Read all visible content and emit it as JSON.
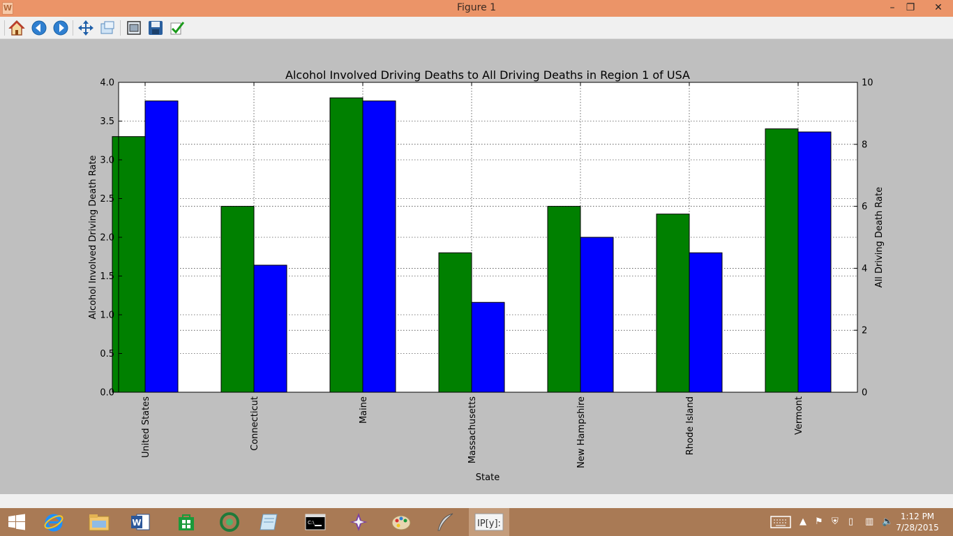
{
  "window": {
    "title": "Figure 1",
    "minimize": "–",
    "restore": "❐",
    "close": "✕"
  },
  "toolbar": {
    "buttons": [
      "home-icon",
      "back-icon",
      "forward-icon",
      "pan-icon",
      "zoom-icon",
      "configure-subplots-icon",
      "save-icon",
      "edit-icon"
    ]
  },
  "chart_data": {
    "type": "bar",
    "title": "Alcohol Involved Driving Deaths to All Driving Deaths in Region 1 of USA",
    "xlabel": "State",
    "ylabel": "Alcohol Involved Driving Death Rate",
    "y2label": "All Driving Death Rate",
    "categories": [
      "United States",
      "Connecticut",
      "Maine",
      "Massachusetts",
      "New Hampshire",
      "Rhode Island",
      "Vermont"
    ],
    "series": [
      {
        "axis": "left",
        "color": "#008000",
        "values": [
          3.3,
          2.4,
          3.8,
          1.8,
          2.4,
          2.3,
          3.4
        ]
      },
      {
        "axis": "right",
        "color": "#0000ff",
        "values": [
          9.4,
          4.1,
          9.4,
          2.9,
          5.0,
          4.5,
          8.4
        ]
      }
    ],
    "ylim": [
      0,
      4.0
    ],
    "y2lim": [
      0,
      10
    ],
    "yticks": [
      "0.0",
      "0.5",
      "1.0",
      "1.5",
      "2.0",
      "2.5",
      "3.0",
      "3.5",
      "4.0"
    ],
    "y2ticks": [
      "0",
      "2",
      "4",
      "6",
      "8",
      "10"
    ],
    "grid": true
  },
  "taskbar": {
    "items": [
      "start-icon",
      "internet-explorer-icon",
      "file-explorer-icon",
      "word-icon",
      "store-icon",
      "python-icon",
      "notepad-icon",
      "command-prompt-icon",
      "app-icon",
      "paint-icon",
      "feather-icon",
      "ipython-icon"
    ],
    "time": "1:12 PM",
    "date": "7/28/2015"
  }
}
